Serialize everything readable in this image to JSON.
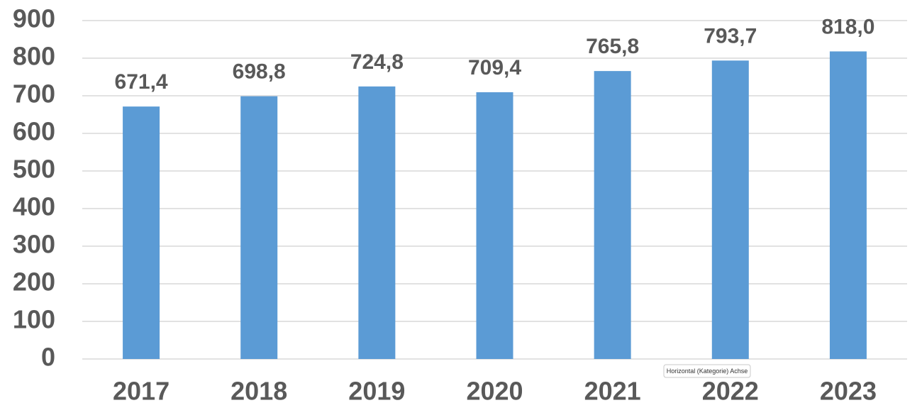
{
  "chart_data": {
    "type": "bar",
    "categories": [
      "2017",
      "2018",
      "2019",
      "2020",
      "2021",
      "2022",
      "2023"
    ],
    "values": [
      671.4,
      698.8,
      724.8,
      709.4,
      765.8,
      793.7,
      818.0
    ],
    "value_labels": [
      "671,4",
      "698,8",
      "724,8",
      "709,4",
      "765,8",
      "793,7",
      "818,0"
    ],
    "color": "#5b9bd5",
    "ylim": [
      0,
      900
    ],
    "yticks": [
      0,
      100,
      200,
      300,
      400,
      500,
      600,
      700,
      800,
      900
    ],
    "grid": true,
    "tooltip": "Horizontal (Kategorie) Achse"
  }
}
